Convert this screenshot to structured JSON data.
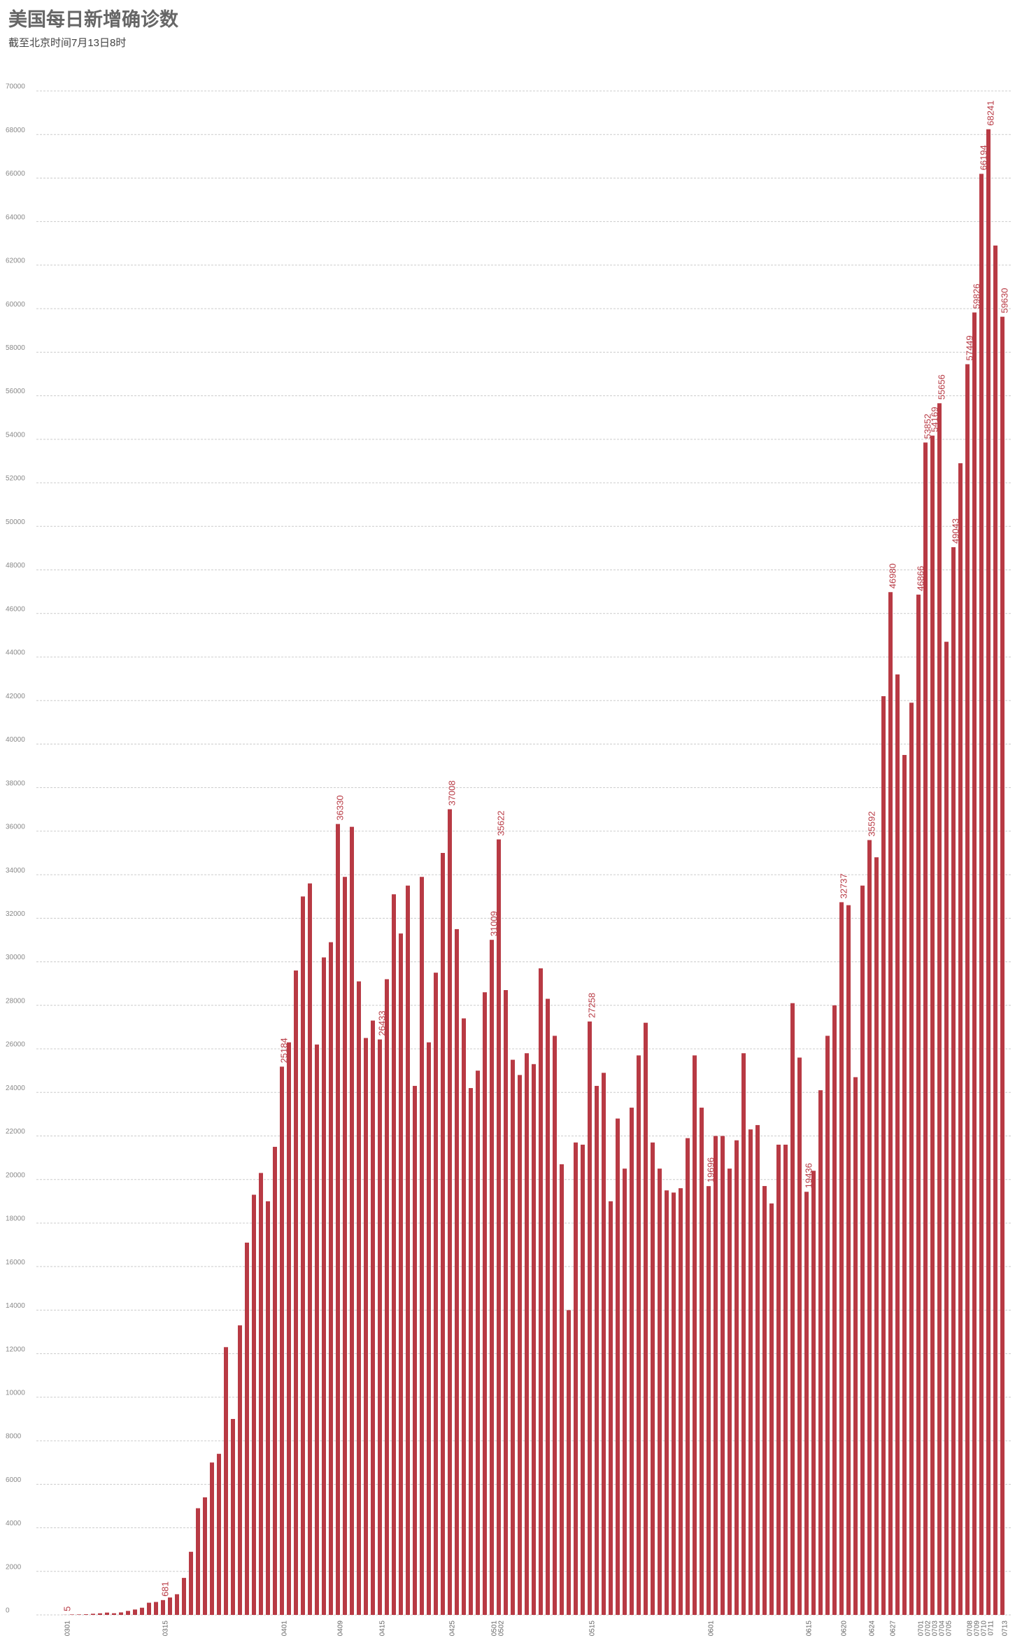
{
  "chart_data": {
    "type": "bar",
    "title": "美国每日新增确诊数",
    "subtitle": "截至北京时间7月13日8时",
    "color": "#b83a44",
    "grid": true,
    "ylim": [
      0,
      70000
    ],
    "yticks": [
      0,
      2000,
      4000,
      6000,
      8000,
      10000,
      12000,
      14000,
      16000,
      18000,
      20000,
      22000,
      24000,
      26000,
      28000,
      30000,
      32000,
      34000,
      36000,
      38000,
      40000,
      42000,
      44000,
      46000,
      48000,
      50000,
      52000,
      54000,
      56000,
      58000,
      60000,
      62000,
      64000,
      66000,
      68000,
      70000
    ],
    "categories": [
      "0301",
      null,
      null,
      null,
      null,
      null,
      null,
      null,
      null,
      null,
      null,
      null,
      null,
      null,
      "0315",
      null,
      null,
      null,
      null,
      null,
      null,
      null,
      null,
      null,
      null,
      null,
      null,
      null,
      null,
      null,
      null,
      "0401",
      null,
      null,
      null,
      null,
      null,
      null,
      null,
      "0409",
      null,
      null,
      null,
      null,
      null,
      "0415",
      null,
      null,
      null,
      null,
      null,
      null,
      null,
      null,
      null,
      "0425",
      null,
      null,
      null,
      null,
      null,
      "0501",
      "0502",
      null,
      null,
      null,
      null,
      null,
      null,
      null,
      null,
      null,
      null,
      null,
      null,
      "0515",
      null,
      null,
      null,
      null,
      null,
      null,
      null,
      null,
      null,
      null,
      null,
      null,
      null,
      null,
      null,
      null,
      "0601",
      null,
      null,
      null,
      null,
      null,
      null,
      null,
      null,
      null,
      null,
      null,
      null,
      null,
      "0615",
      null,
      null,
      null,
      null,
      "0620",
      null,
      null,
      null,
      "0624",
      null,
      null,
      "0627",
      null,
      null,
      null,
      "0701",
      "0702",
      "0703",
      "0704",
      "0705",
      null,
      null,
      "0708",
      "0709",
      "0710",
      "0711",
      null,
      "0713"
    ],
    "values": [
      5,
      20,
      22,
      30,
      53,
      74,
      107,
      76,
      115,
      184,
      248,
      330,
      560,
      595,
      681,
      800,
      950,
      1700,
      2900,
      4900,
      5400,
      7000,
      7400,
      12300,
      9000,
      13300,
      17100,
      19300,
      20300,
      19000,
      21500,
      25184,
      26300,
      29600,
      33000,
      33600,
      26200,
      30200,
      30900,
      36330,
      33900,
      36200,
      29100,
      26500,
      27300,
      26433,
      29200,
      33100,
      31300,
      33500,
      24300,
      33900,
      26300,
      29500,
      35000,
      37008,
      31500,
      27400,
      24200,
      25000,
      28600,
      31009,
      35622,
      28700,
      25500,
      24800,
      25800,
      25300,
      29700,
      28300,
      26600,
      20700,
      14000,
      21700,
      21600,
      27258,
      24300,
      24900,
      19000,
      22800,
      20500,
      23300,
      25700,
      27200,
      21700,
      20500,
      19500,
      19400,
      19600,
      21900,
      25700,
      23300,
      19696,
      22000,
      22000,
      20500,
      21800,
      25800,
      22300,
      22500,
      19700,
      18900,
      21600,
      21600,
      28100,
      25600,
      19436,
      20400,
      24100,
      26600,
      28000,
      32737,
      32600,
      24700,
      33500,
      35592,
      34800,
      42200,
      46980,
      43200,
      39500,
      41900,
      46866,
      53852,
      54169,
      55656,
      44700,
      49043,
      52900,
      57449,
      59826,
      66194,
      68241,
      62900,
      59630
    ],
    "value_labels": [
      "5",
      null,
      null,
      null,
      null,
      null,
      null,
      null,
      null,
      null,
      null,
      null,
      null,
      null,
      "681",
      null,
      null,
      null,
      null,
      null,
      null,
      null,
      null,
      null,
      null,
      null,
      null,
      null,
      null,
      null,
      null,
      "25184",
      null,
      null,
      null,
      null,
      null,
      null,
      null,
      "36330",
      null,
      null,
      null,
      null,
      null,
      "26433",
      null,
      null,
      null,
      null,
      null,
      null,
      null,
      null,
      null,
      "37008",
      null,
      null,
      null,
      null,
      null,
      "31009",
      "35622",
      null,
      null,
      null,
      null,
      null,
      null,
      null,
      null,
      null,
      null,
      null,
      null,
      "27258",
      null,
      null,
      null,
      null,
      null,
      null,
      null,
      null,
      null,
      null,
      null,
      null,
      null,
      null,
      null,
      null,
      "19696",
      null,
      null,
      null,
      null,
      null,
      null,
      null,
      null,
      null,
      null,
      null,
      null,
      null,
      "19436",
      null,
      null,
      null,
      null,
      "32737",
      null,
      null,
      null,
      "35592",
      null,
      null,
      "46980",
      null,
      null,
      null,
      "46866",
      "53852",
      "54169",
      "55656",
      null,
      "49043",
      null,
      "57449",
      "59826",
      "66194",
      "68241",
      null,
      "59630"
    ]
  }
}
